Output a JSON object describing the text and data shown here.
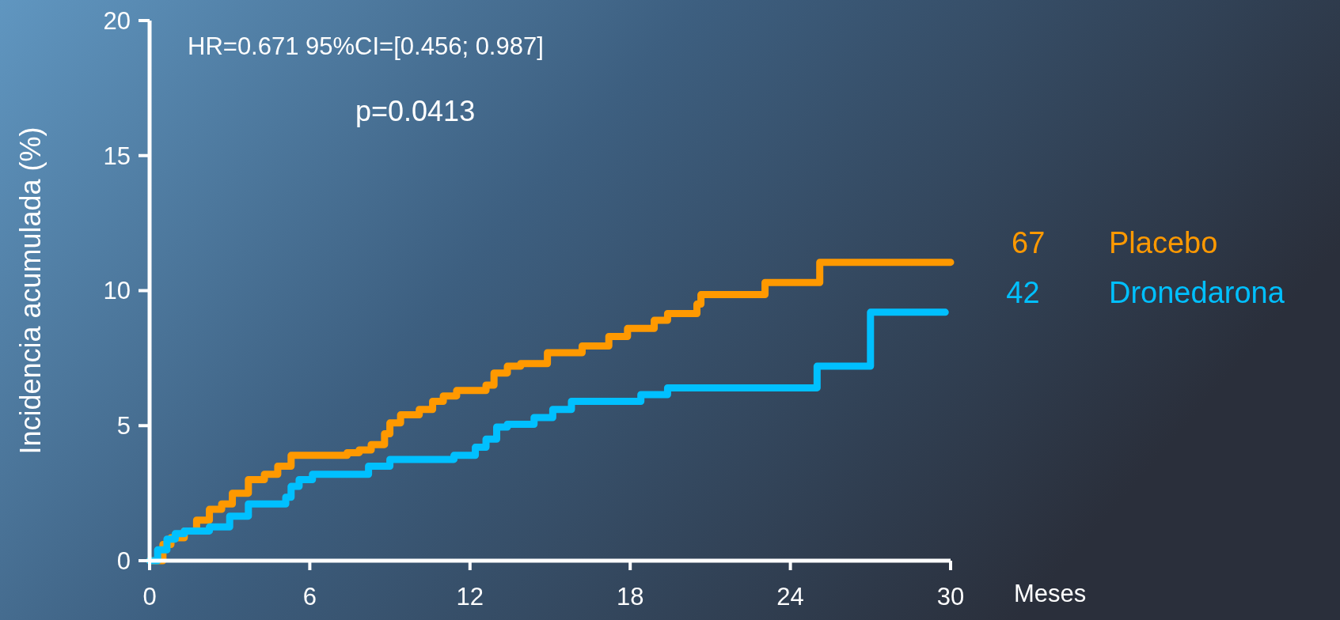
{
  "chart_data": {
    "type": "step",
    "xlabel": "Meses",
    "ylabel": "Incidencia acumulada (%)",
    "xlim": [
      0,
      30
    ],
    "xticks": [
      0,
      6,
      12,
      18,
      24,
      30
    ],
    "ylim": [
      0,
      20
    ],
    "yticks": [
      0,
      5,
      10,
      15,
      20
    ],
    "grid": false,
    "legend": "right",
    "line_style": "solid",
    "marker": "none",
    "annotations": [
      "HR=0.671 95%CI=[0.456; 0.987]",
      "p=0.0413",
      {
        "text": "67",
        "x": 30,
        "y": 11.05
      },
      {
        "text": "42",
        "x": 29.8,
        "y": 9.2
      }
    ],
    "series": [
      {
        "name": "Placebo",
        "color": "#ff9900",
        "x": [
          0,
          0.5,
          0.8,
          1.3,
          1.76,
          2.24,
          2.7,
          3.1,
          3.7,
          4.3,
          4.8,
          5.3,
          7.4,
          7.85,
          8.3,
          8.8,
          9.0,
          9.4,
          10.1,
          10.6,
          11.0,
          11.5,
          12.6,
          12.9,
          13.4,
          13.9,
          14.9,
          16.2,
          17.2,
          17.9,
          18.9,
          19.4,
          20.5,
          20.65,
          23.05,
          25.1,
          30
        ],
        "values": [
          0,
          0.6,
          0.85,
          1.1,
          1.5,
          1.9,
          2.1,
          2.5,
          3.0,
          3.2,
          3.5,
          3.9,
          4.0,
          4.1,
          4.3,
          4.7,
          5.1,
          5.4,
          5.6,
          5.9,
          6.1,
          6.3,
          6.5,
          6.95,
          7.2,
          7.3,
          7.7,
          7.95,
          8.3,
          8.6,
          8.9,
          9.15,
          9.5,
          9.85,
          10.3,
          11.05,
          11.05
        ]
      },
      {
        "name": "Dronedarona",
        "color": "#00c0ff",
        "x": [
          0,
          0.3,
          0.65,
          0.96,
          1.3,
          2.24,
          3.0,
          3.7,
          5.1,
          5.3,
          5.6,
          6.1,
          8.2,
          9.0,
          11.4,
          12.2,
          12.6,
          13.0,
          13.4,
          14.4,
          15.1,
          15.8,
          18.4,
          19.4,
          25.0,
          27.0,
          29.8
        ],
        "values": [
          0,
          0.4,
          0.8,
          1.0,
          1.1,
          1.25,
          1.65,
          2.1,
          2.35,
          2.75,
          3.0,
          3.2,
          3.5,
          3.75,
          3.9,
          4.2,
          4.5,
          4.95,
          5.05,
          5.3,
          5.6,
          5.9,
          6.15,
          6.4,
          7.2,
          9.2,
          9.2
        ]
      }
    ]
  }
}
